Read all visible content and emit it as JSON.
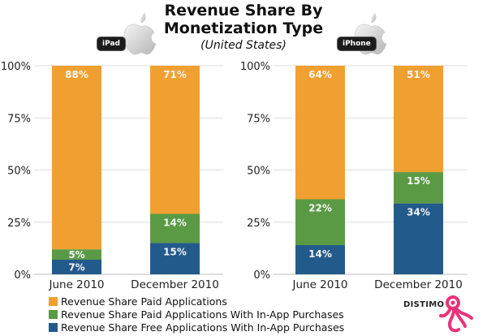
{
  "header": {
    "title_line1": "Revenue Share By",
    "title_line2": "Monetization Type",
    "subtitle": "(United States)"
  },
  "brand": {
    "logo_text": "DISTIMO",
    "logo_color": "#e8337a"
  },
  "colors": {
    "paid": "#f0a030",
    "paid_iap": "#5a9a45",
    "free_iap": "#235a8c",
    "grid": "#dddddd"
  },
  "legend": [
    {
      "label": "Revenue Share Paid Applications",
      "color": "#f0a030"
    },
    {
      "label": "Revenue Share Paid Applications With In-App Purchases",
      "color": "#5a9a45"
    },
    {
      "label": "Revenue Share Free Applications With In-App Purchases",
      "color": "#235a8c"
    }
  ],
  "chart_data": [
    {
      "type": "bar",
      "stacked": true,
      "device": "iPad",
      "title": "",
      "categories": [
        "June 2010",
        "December 2010"
      ],
      "series": [
        {
          "name": "Revenue Share Free Applications With In-App Purchases",
          "values": [
            7,
            15
          ],
          "labels": [
            "7%",
            "15%"
          ]
        },
        {
          "name": "Revenue Share Paid Applications With In-App Purchases",
          "values": [
            5,
            14
          ],
          "labels": [
            "5%",
            "14%"
          ]
        },
        {
          "name": "Revenue Share Paid Applications",
          "values": [
            88,
            71
          ],
          "labels": [
            "88%",
            "71%"
          ]
        }
      ],
      "yticks": [
        "0%",
        "25%",
        "50%",
        "75%",
        "100%"
      ],
      "ylim": [
        0,
        100
      ],
      "grid": true,
      "legend_position": "bottom-left"
    },
    {
      "type": "bar",
      "stacked": true,
      "device": "iPhone",
      "title": "",
      "categories": [
        "June 2010",
        "December 2010"
      ],
      "series": [
        {
          "name": "Revenue Share Free Applications With In-App Purchases",
          "values": [
            14,
            34
          ],
          "labels": [
            "14%",
            "34%"
          ]
        },
        {
          "name": "Revenue Share Paid Applications With In-App Purchases",
          "values": [
            22,
            15
          ],
          "labels": [
            "22%",
            "15%"
          ]
        },
        {
          "name": "Revenue Share Paid Applications",
          "values": [
            64,
            51
          ],
          "labels": [
            "64%",
            "51%"
          ]
        }
      ],
      "yticks": [
        "0%",
        "25%",
        "50%",
        "75%",
        "100%"
      ],
      "ylim": [
        0,
        100
      ],
      "grid": true,
      "legend_position": "bottom-left"
    }
  ]
}
